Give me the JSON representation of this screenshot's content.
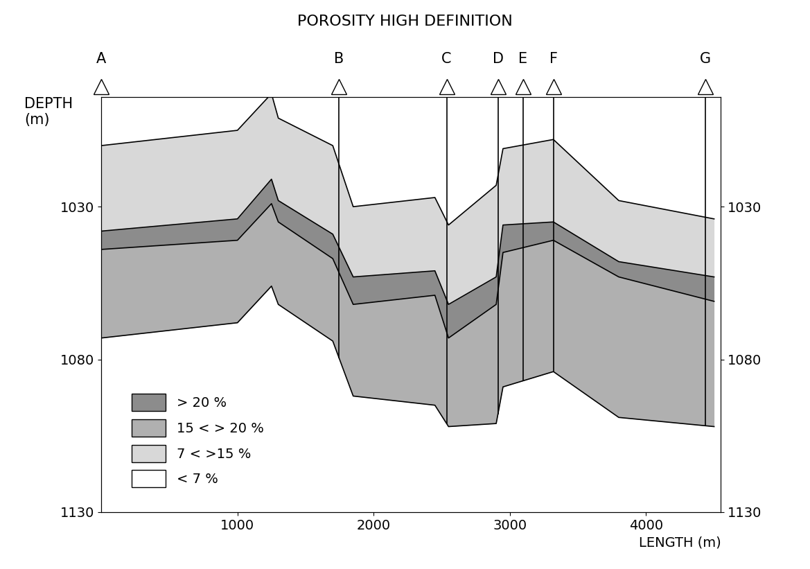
{
  "chart_data": {
    "type": "cross_section",
    "title": "POROSITY HIGH DEFINITION",
    "xlabel": "LENGTH (m)",
    "ylabel": "DEPTH\n(m)",
    "xlim": [
      0,
      4550
    ],
    "xticks": [
      1000,
      2000,
      3000,
      4000
    ],
    "ylim": [
      1130,
      994
    ],
    "yticks": [
      1030,
      1080,
      1130
    ],
    "wells": [
      {
        "name": "A",
        "x": 0
      },
      {
        "name": "B",
        "x": 1745
      },
      {
        "name": "C",
        "x": 2536
      },
      {
        "name": "D",
        "x": 2913
      },
      {
        "name": "E",
        "x": 3097
      },
      {
        "name": "F",
        "x": 3321
      },
      {
        "name": "G",
        "x": 4434
      }
    ],
    "x": [
      0,
      1000,
      1250,
      1300,
      1700,
      1850,
      2450,
      2550,
      2900,
      2950,
      3320,
      3800,
      4500
    ],
    "horizons": [
      [
        1010,
        1005,
        993,
        1001,
        1010,
        1030,
        1027,
        1036,
        1023,
        1011,
        1008,
        1028,
        1034
      ],
      [
        1038,
        1034,
        1021,
        1028,
        1039,
        1053,
        1051,
        1062,
        1053,
        1036,
        1035,
        1048,
        1053
      ],
      [
        1044,
        1041,
        1029,
        1035,
        1047,
        1062,
        1059,
        1073,
        1062,
        1045,
        1041,
        1053,
        1061
      ],
      [
        1073,
        1068,
        1056,
        1062,
        1074,
        1092,
        1095,
        1102,
        1101,
        1089,
        1084,
        1099,
        1102
      ]
    ],
    "layers": [
      {
        "top": 0,
        "base": 1,
        "class": 2
      },
      {
        "top": 1,
        "base": 2,
        "class": 0
      },
      {
        "top": 2,
        "base": 3,
        "class": 1
      }
    ],
    "series": [
      {
        "name": "> 20 %",
        "color": "#8c8c8c"
      },
      {
        "name": "15 < > 20 %",
        "color": "#b0b0b0"
      },
      {
        "name": "7 < >15 %",
        "color": "#d8d8d8"
      },
      {
        "name": "< 7 %",
        "color": "#ffffff"
      }
    ],
    "legend": "lower left"
  }
}
